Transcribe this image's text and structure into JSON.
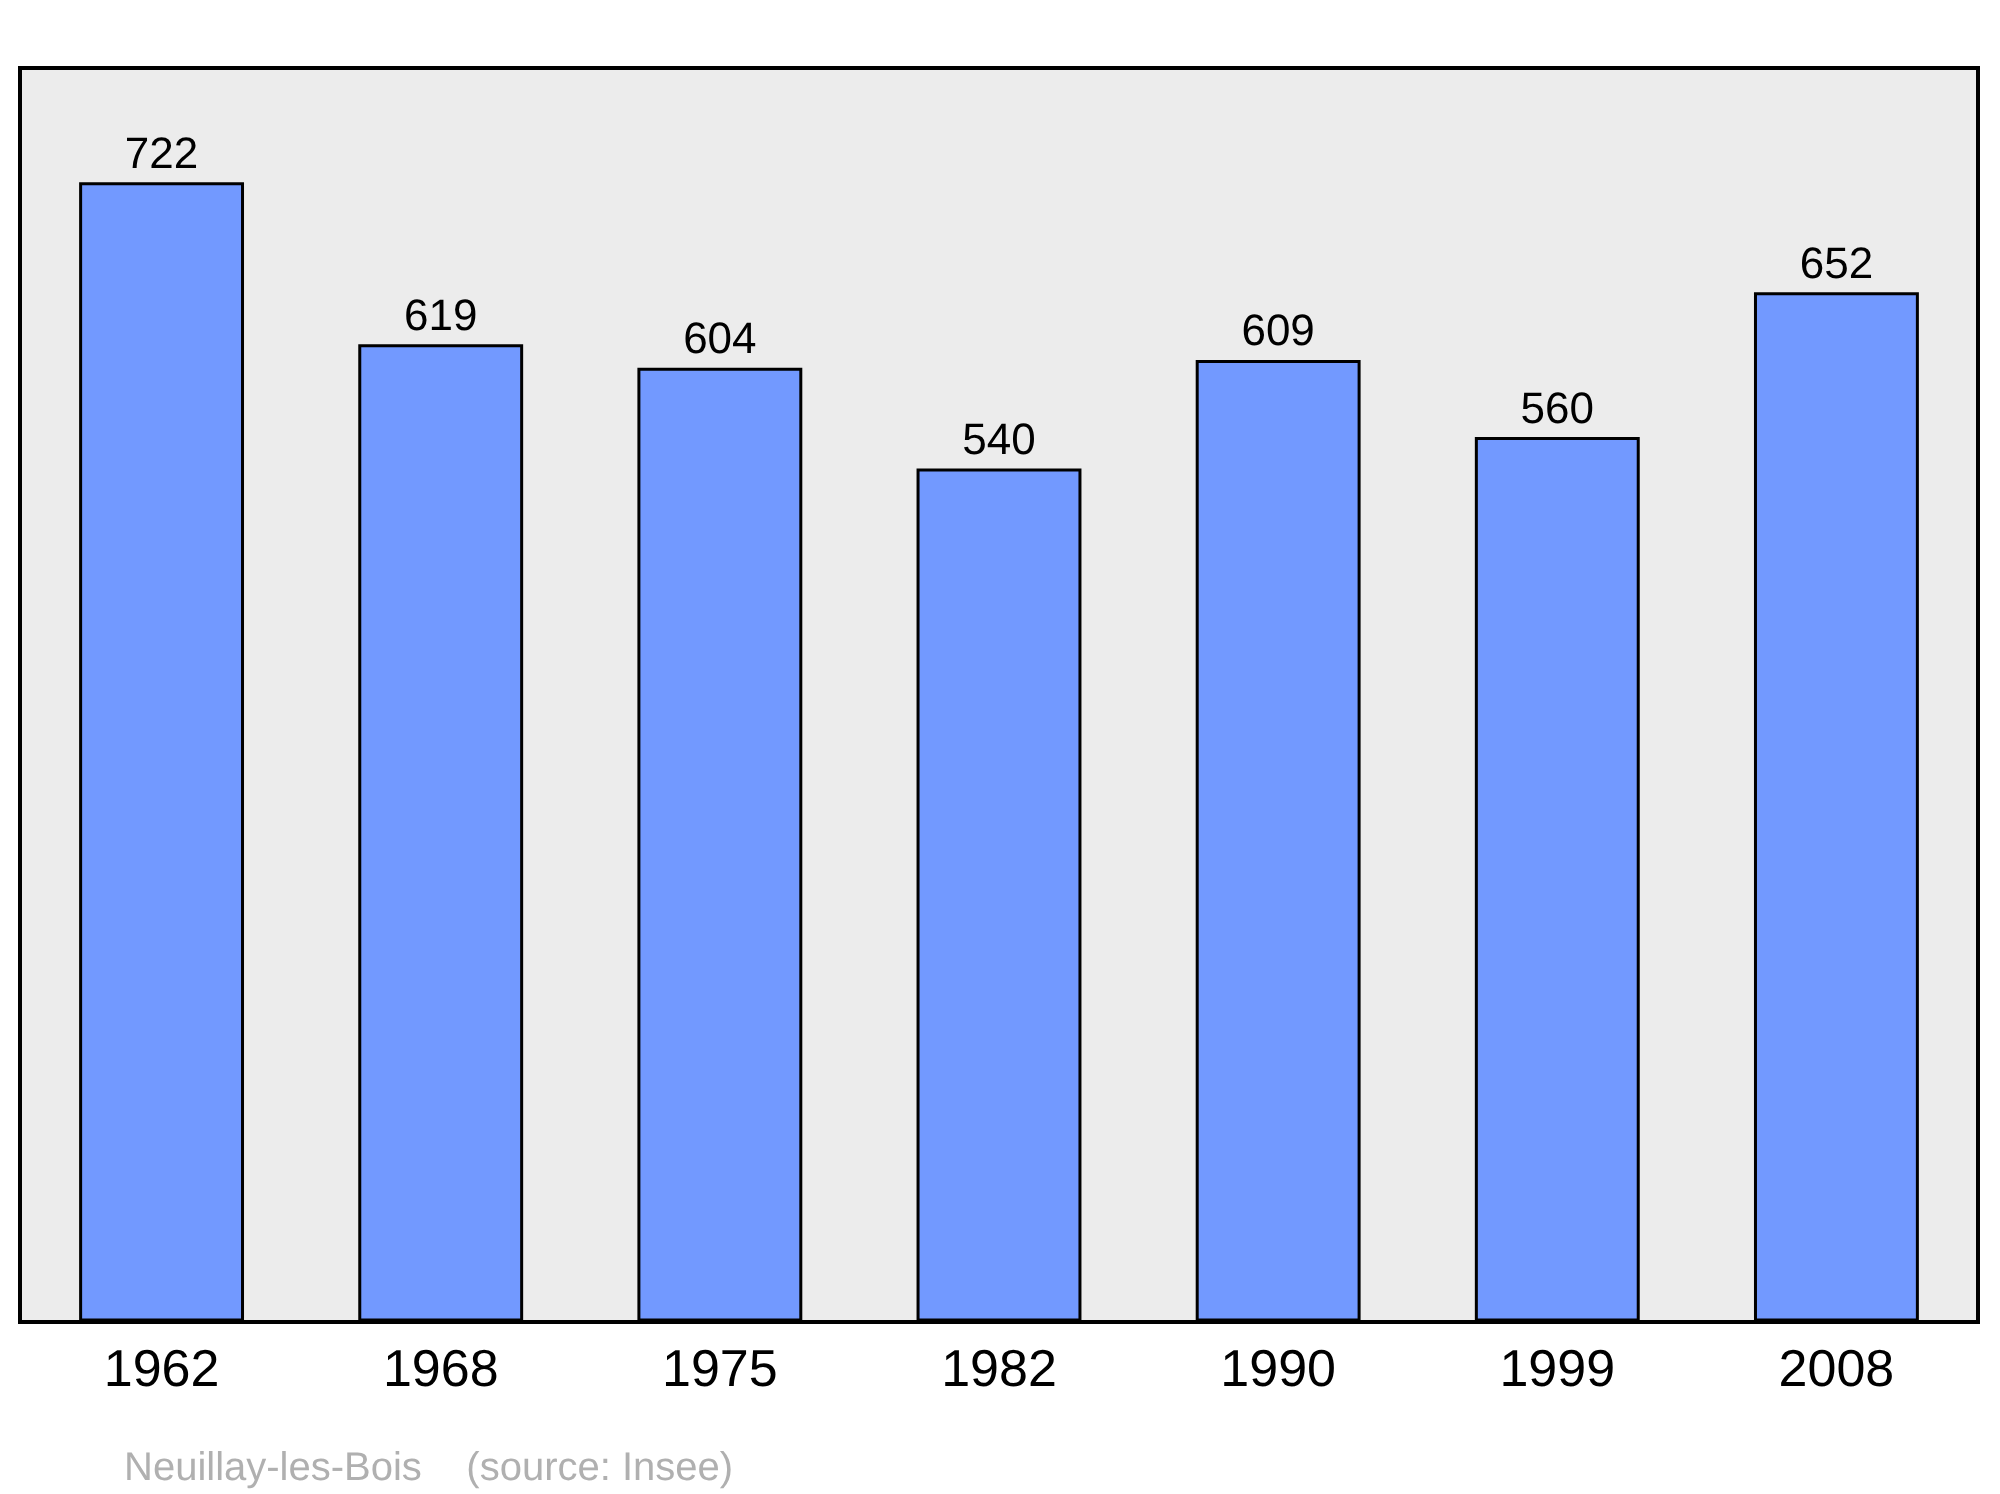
{
  "chart_data": {
    "type": "bar",
    "categories": [
      "1962",
      "1968",
      "1975",
      "1982",
      "1990",
      "1999",
      "2008"
    ],
    "values": [
      722,
      619,
      604,
      540,
      609,
      560,
      652
    ],
    "color": "#7299ff",
    "data_labels": true,
    "grid": false,
    "legend": false,
    "annotations": [
      "Neuillay-les-Bois    (source: Insee)"
    ]
  }
}
